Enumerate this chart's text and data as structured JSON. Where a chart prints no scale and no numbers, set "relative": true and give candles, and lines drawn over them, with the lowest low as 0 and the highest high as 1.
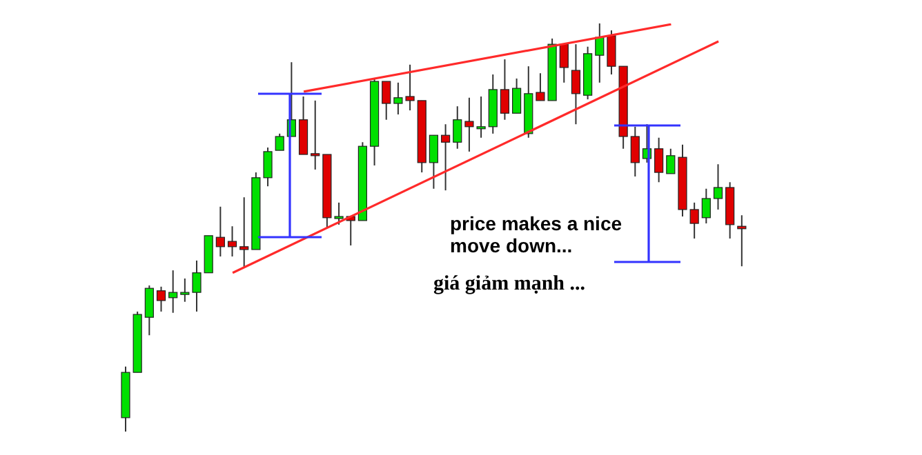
{
  "chart_data": {
    "type": "candlestick",
    "relative": true,
    "categories": [
      null,
      null,
      null,
      null,
      null,
      null,
      null,
      null,
      null,
      null,
      null,
      null,
      null,
      null,
      null,
      null,
      null,
      null,
      null,
      null,
      null,
      null,
      null,
      null,
      null,
      null,
      null,
      null,
      null,
      null,
      null,
      null,
      null,
      null,
      null,
      null,
      null,
      null,
      null,
      null,
      null,
      null,
      null,
      null,
      null,
      null,
      null,
      null,
      null,
      null,
      null,
      null,
      null
    ],
    "ohlc": [
      [
        0.034,
        0.159,
        0,
        0.145
      ],
      [
        0.145,
        0.294,
        0.145,
        0.287
      ],
      [
        0.28,
        0.358,
        0.236,
        0.351
      ],
      [
        0.345,
        0.355,
        0.294,
        0.321
      ],
      [
        0.328,
        0.395,
        0.291,
        0.341
      ],
      [
        0.338,
        0.375,
        0.318,
        0.341
      ],
      [
        0.341,
        0.419,
        0.294,
        0.389
      ],
      [
        0.389,
        0.48,
        0.389,
        0.48
      ],
      [
        0.476,
        0.551,
        0.429,
        0.453
      ],
      [
        0.466,
        0.503,
        0.429,
        0.453
      ],
      [
        0.453,
        0.574,
        0.402,
        0.446
      ],
      [
        0.446,
        0.635,
        0.446,
        0.622
      ],
      [
        0.622,
        0.696,
        0.601,
        0.686
      ],
      [
        0.689,
        0.73,
        0.689,
        0.723
      ],
      [
        0.723,
        0.905,
        0.723,
        0.764
      ],
      [
        0.764,
        0.821,
        0.679,
        0.679
      ],
      [
        0.681,
        0.811,
        0.642,
        0.677
      ],
      [
        0.679,
        0.679,
        0.5,
        0.524
      ],
      [
        0.524,
        0.561,
        0.507,
        0.527
      ],
      [
        0.527,
        0.527,
        0.456,
        0.517
      ],
      [
        0.517,
        0.709,
        0.517,
        0.699
      ],
      [
        0.699,
        0.865,
        0.652,
        0.858
      ],
      [
        0.858,
        0.858,
        0.764,
        0.804
      ],
      [
        0.804,
        0.855,
        0.777,
        0.818
      ],
      [
        0.821,
        0.899,
        0.787,
        0.811
      ],
      [
        0.811,
        0.811,
        0.635,
        0.659
      ],
      [
        0.659,
        0.726,
        0.595,
        0.726
      ],
      [
        0.726,
        0.753,
        0.591,
        0.709
      ],
      [
        0.709,
        0.797,
        0.693,
        0.764
      ],
      [
        0.76,
        0.818,
        0.686,
        0.747
      ],
      [
        0.745,
        0.821,
        0.72,
        0.747
      ],
      [
        0.747,
        0.875,
        0.73,
        0.838
      ],
      [
        0.838,
        0.912,
        0.764,
        0.78
      ],
      [
        0.78,
        0.865,
        0.78,
        0.841
      ],
      [
        0.73,
        0.895,
        0.72,
        0.828
      ],
      [
        0.831,
        0.878,
        0.811,
        0.811
      ],
      [
        0.811,
        0.963,
        0.811,
        0.949
      ],
      [
        0.949,
        0.949,
        0.855,
        0.892
      ],
      [
        0.885,
        0.949,
        0.753,
        0.828
      ],
      [
        0.824,
        0.943,
        0.814,
        0.926
      ],
      [
        0.922,
        1,
        0.855,
        0.966
      ],
      [
        0.97,
        0.983,
        0.875,
        0.895
      ],
      [
        0.895,
        0.895,
        0.693,
        0.723
      ],
      [
        0.723,
        0.747,
        0.625,
        0.659
      ],
      [
        0.669,
        0.753,
        0.659,
        0.693
      ],
      [
        0.693,
        0.72,
        0.611,
        0.635
      ],
      [
        0.632,
        0.693,
        0.632,
        0.676
      ],
      [
        0.672,
        0.703,
        0.527,
        0.544
      ],
      [
        0.544,
        0.561,
        0.473,
        0.51
      ],
      [
        0.524,
        0.595,
        0.51,
        0.571
      ],
      [
        0.571,
        0.655,
        0.544,
        0.598
      ],
      [
        0.598,
        0.611,
        0.473,
        0.507
      ],
      [
        0.503,
        0.53,
        0.405,
        0.497
      ]
    ],
    "colors": [
      "#00e000",
      "#00e000",
      "#00e000",
      "#e00000",
      "#00e000",
      "#00e000",
      "#00e000",
      "#00e000",
      "#e00000",
      "#e00000",
      "#e00000",
      "#00e000",
      "#00e000",
      "#00e000",
      "#00e000",
      "#e00000",
      "#e00000",
      "#e00000",
      "#00e000",
      "#e00000",
      "#00e000",
      "#00e000",
      "#e00000",
      "#00e000",
      "#e00000",
      "#e00000",
      "#00e000",
      "#e00000",
      "#00e000",
      "#e00000",
      "#00e000",
      "#00e000",
      "#e00000",
      "#00e000",
      "#00e000",
      "#e00000",
      "#00e000",
      "#e00000",
      "#e00000",
      "#00e000",
      "#00e000",
      "#e00000",
      "#e00000",
      "#e00000",
      "#00e000",
      "#e00000",
      "#00e000",
      "#e00000",
      "#e00000",
      "#00e000",
      "#00e000",
      "#e00000",
      "#e00000"
    ],
    "series": [
      {
        "type": "line",
        "color": "#ff2a2a",
        "values": [
          null,
          null,
          null,
          null,
          null,
          null,
          null,
          null,
          null,
          null,
          null,
          null,
          null,
          null,
          null,
          0.833,
          null,
          null,
          null,
          null,
          null,
          null,
          null,
          null,
          null,
          null,
          null,
          null,
          null,
          null,
          null,
          null,
          null,
          null,
          null,
          null,
          null,
          null,
          null,
          null,
          null,
          null,
          null,
          null,
          null,
          null,
          0.998,
          null,
          null,
          null,
          null,
          null,
          null
        ]
      },
      {
        "type": "line",
        "color": "#ff2a2a",
        "values": [
          null,
          null,
          null,
          null,
          null,
          null,
          null,
          null,
          null,
          0.389,
          null,
          null,
          null,
          null,
          null,
          null,
          null,
          null,
          null,
          null,
          null,
          null,
          null,
          null,
          null,
          null,
          null,
          null,
          null,
          null,
          null,
          null,
          null,
          null,
          null,
          null,
          null,
          null,
          null,
          null,
          null,
          null,
          null,
          null,
          null,
          null,
          null,
          null,
          null,
          null,
          0.956,
          null,
          null
        ]
      }
    ],
    "marker": "none",
    "annotations": [
      "price makes a nice move down...",
      "giá giảm mạnh ..."
    ]
  }
}
